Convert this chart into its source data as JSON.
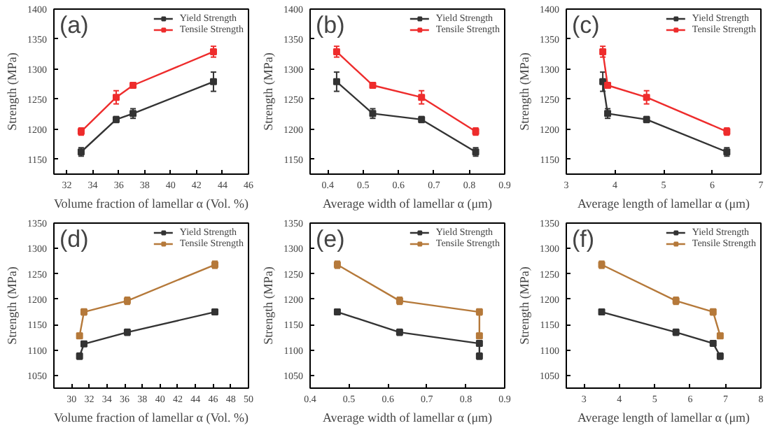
{
  "chart_data": [
    {
      "type": "line",
      "xlabel": "Volume fraction of lamellar α (Vol. %)",
      "ylabel": "Strength (MPa)",
      "annotations": [
        "(a)"
      ],
      "xlim": [
        31,
        46
      ],
      "xticks": [
        32,
        34,
        36,
        38,
        40,
        42,
        44,
        46
      ],
      "ylim": [
        1125,
        1400
      ],
      "yticks": [
        1150,
        1200,
        1250,
        1300,
        1350,
        1400
      ],
      "grid": false,
      "legend": "top right",
      "marker": "square",
      "x": [
        33.1,
        35.8,
        37.1,
        43.3
      ],
      "series": [
        {
          "name": "Yield Strength",
          "color": "#333333",
          "values": [
            1162,
            1216,
            1226,
            1279
          ],
          "errors": [
            7,
            5,
            8,
            16
          ]
        },
        {
          "name": "Tensile Strength",
          "color": "#ee2c2c",
          "values": [
            1196,
            1253,
            1273,
            1329
          ],
          "errors": [
            6,
            11,
            4,
            9
          ]
        }
      ]
    },
    {
      "type": "line",
      "xlabel": "Average width of lamellar α (μm)",
      "ylabel": "Strength (MPa)",
      "annotations": [
        "(b)"
      ],
      "xlim": [
        0.35,
        0.9
      ],
      "xticks": [
        0.4,
        0.5,
        0.6,
        0.7,
        0.8,
        0.9
      ],
      "ylim": [
        1125,
        1400
      ],
      "yticks": [
        1150,
        1200,
        1250,
        1300,
        1350,
        1400
      ],
      "grid": false,
      "legend": "top right",
      "marker": "square",
      "x": [
        0.425,
        0.527,
        0.665,
        0.818
      ],
      "series": [
        {
          "name": "Yield Strength",
          "color": "#333333",
          "values": [
            1279,
            1226,
            1216,
            1162
          ],
          "errors": [
            16,
            8,
            5,
            7
          ]
        },
        {
          "name": "Tensile Strength",
          "color": "#ee2c2c",
          "values": [
            1329,
            1273,
            1253,
            1196
          ],
          "errors": [
            9,
            4,
            11,
            6
          ]
        }
      ]
    },
    {
      "type": "line",
      "xlabel": "Average length of lamellar α (μm)",
      "ylabel": "Strength (MPa)",
      "annotations": [
        "(c)"
      ],
      "xlim": [
        3,
        7
      ],
      "xticks": [
        3,
        4,
        5,
        6,
        7
      ],
      "ylim": [
        1125,
        1400
      ],
      "yticks": [
        1150,
        1200,
        1250,
        1300,
        1350,
        1400
      ],
      "grid": false,
      "legend": "top right",
      "marker": "square",
      "x": [
        3.75,
        3.85,
        4.65,
        6.3
      ],
      "series": [
        {
          "name": "Yield Strength",
          "color": "#333333",
          "values": [
            1279,
            1226,
            1216,
            1162
          ],
          "errors": [
            16,
            8,
            5,
            7
          ]
        },
        {
          "name": "Tensile Strength",
          "color": "#ee2c2c",
          "values": [
            1329,
            1273,
            1253,
            1196
          ],
          "errors": [
            9,
            4,
            11,
            6
          ]
        }
      ]
    },
    {
      "type": "line",
      "xlabel": "Volume fraction of lamellar α (Vol. %)",
      "ylabel": "Strength (MPa)",
      "annotations": [
        "(d)"
      ],
      "xlim": [
        28,
        50
      ],
      "xticks": [
        30,
        32,
        34,
        36,
        38,
        40,
        42,
        44,
        46,
        48,
        50
      ],
      "ylim": [
        1025,
        1350
      ],
      "yticks": [
        1050,
        1100,
        1150,
        1200,
        1250,
        1300,
        1350
      ],
      "grid": false,
      "legend": "top right",
      "marker": "square",
      "x": [
        30.9,
        31.4,
        36.3,
        46.2
      ],
      "series": [
        {
          "name": "Yield Strength",
          "color": "#333333",
          "values": [
            1088,
            1112,
            1135,
            1175
          ],
          "errors": [
            6,
            4,
            6,
            5
          ]
        },
        {
          "name": "Tensile Strength",
          "color": "#b5793a",
          "values": [
            1128,
            1175,
            1197,
            1268
          ],
          "errors": [
            5,
            6,
            7,
            7
          ]
        }
      ]
    },
    {
      "type": "line",
      "xlabel": "Average width of lamellar α (μm)",
      "ylabel": "Strength (MPa)",
      "annotations": [
        "(e)"
      ],
      "xlim": [
        0.4,
        0.9
      ],
      "xticks": [
        0.4,
        0.5,
        0.6,
        0.7,
        0.8,
        0.9
      ],
      "ylim": [
        1025,
        1350
      ],
      "yticks": [
        1050,
        1100,
        1150,
        1200,
        1250,
        1300,
        1350
      ],
      "grid": false,
      "legend": "top right",
      "marker": "square",
      "x": [
        0.47,
        0.63,
        0.835,
        0.835
      ],
      "series": [
        {
          "name": "Yield Strength",
          "color": "#333333",
          "values": [
            1175,
            1135,
            1113,
            1088
          ],
          "errors": [
            5,
            6,
            4,
            6
          ]
        },
        {
          "name": "Tensile Strength",
          "color": "#b5793a",
          "values": [
            1268,
            1197,
            1175,
            1128
          ],
          "errors": [
            7,
            7,
            6,
            5
          ]
        }
      ]
    },
    {
      "type": "line",
      "xlabel": "Average length of lamellar α (μm)",
      "ylabel": "Strength (MPa)",
      "annotations": [
        "(f)"
      ],
      "xlim": [
        2.5,
        8
      ],
      "xticks": [
        3,
        4,
        5,
        6,
        7,
        8
      ],
      "ylim": [
        1025,
        1350
      ],
      "yticks": [
        1050,
        1100,
        1150,
        1200,
        1250,
        1300,
        1350
      ],
      "grid": false,
      "legend": "top right",
      "marker": "square",
      "x": [
        3.5,
        5.6,
        6.65,
        6.85
      ],
      "series": [
        {
          "name": "Yield Strength",
          "color": "#333333",
          "values": [
            1175,
            1135,
            1113,
            1088
          ],
          "errors": [
            5,
            6,
            4,
            6
          ]
        },
        {
          "name": "Tensile Strength",
          "color": "#b5793a",
          "values": [
            1268,
            1197,
            1175,
            1128
          ],
          "errors": [
            7,
            7,
            6,
            5
          ]
        }
      ]
    }
  ]
}
